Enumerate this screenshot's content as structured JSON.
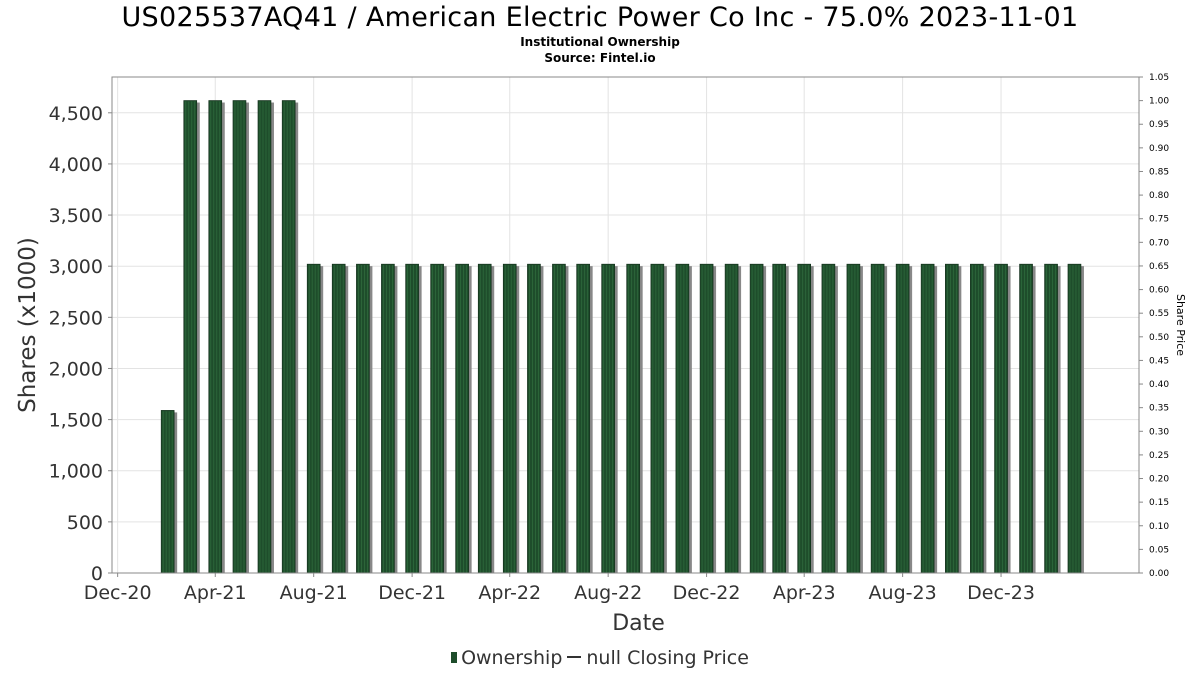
{
  "title": "US025537AQ41 / American Electric Power Co Inc - 75.0% 2023-11-01",
  "subtitle_1": "Institutional Ownership",
  "subtitle_2": "Source: Fintel.io",
  "colors": {
    "bar": "#1e4d2b",
    "bar_shadow": "#888888",
    "grid": "#e3e3e3",
    "axis_text": "#333333"
  },
  "legend": {
    "ownership_label": "Ownership",
    "closing_price_label": "null Closing Price"
  },
  "chart_data": {
    "type": "bar",
    "xlabel": "Date",
    "ylabel": "Shares (x1000)",
    "y2label": "Share Price",
    "ylim": [
      0,
      4850
    ],
    "y_ticks": [
      0,
      500,
      1000,
      1500,
      2000,
      2500,
      3000,
      3500,
      4000,
      4500
    ],
    "y_tick_labels": [
      "0",
      "500",
      "1,000",
      "1,500",
      "2,000",
      "2,500",
      "3,000",
      "3,500",
      "4,000",
      "4,500"
    ],
    "y2lim": [
      0,
      1.05
    ],
    "y2_ticks": [
      0,
      0.05,
      0.1,
      0.15,
      0.2,
      0.25,
      0.3,
      0.35,
      0.4,
      0.45,
      0.5,
      0.55,
      0.6,
      0.65,
      0.7,
      0.75,
      0.8,
      0.85,
      0.9,
      0.95,
      1.0,
      1.05
    ],
    "y2_tick_labels": [
      "0.00",
      "0.05",
      "0.10",
      "0.15",
      "0.20",
      "0.25",
      "0.30",
      "0.35",
      "0.40",
      "0.45",
      "0.50",
      "0.55",
      "0.60",
      "0.65",
      "0.70",
      "0.75",
      "0.80",
      "0.85",
      "0.90",
      "0.95",
      "1.00",
      "1.05"
    ],
    "xlim": [
      "2020-11-24",
      "2024-05-20"
    ],
    "x_ticks": [
      "2020-12-01",
      "2021-04-01",
      "2021-08-01",
      "2021-12-01",
      "2022-04-01",
      "2022-08-01",
      "2022-12-01",
      "2023-04-01",
      "2023-08-01",
      "2023-12-01"
    ],
    "x_tick_labels": [
      "Dec-20",
      "Apr-21",
      "Aug-21",
      "Dec-21",
      "Apr-22",
      "Aug-22",
      "Dec-22",
      "Apr-23",
      "Aug-23",
      "Dec-23"
    ],
    "dates": [
      "2021-02-01",
      "2021-03-01",
      "2021-04-01",
      "2021-05-01",
      "2021-06-01",
      "2021-07-01",
      "2021-08-01",
      "2021-09-01",
      "2021-10-01",
      "2021-11-01",
      "2021-12-01",
      "2022-01-01",
      "2022-02-01",
      "2022-03-01",
      "2022-04-01",
      "2022-05-01",
      "2022-06-01",
      "2022-07-01",
      "2022-08-01",
      "2022-09-01",
      "2022-10-01",
      "2022-11-01",
      "2022-12-01",
      "2023-01-01",
      "2023-02-01",
      "2023-03-01",
      "2023-04-01",
      "2023-05-01",
      "2023-06-01",
      "2023-07-01",
      "2023-08-01",
      "2023-09-01",
      "2023-10-01",
      "2023-11-01",
      "2023-12-01",
      "2024-01-01",
      "2024-02-01",
      "2024-03-01"
    ],
    "values": [
      1590,
      4620,
      4620,
      4620,
      4620,
      4620,
      3020,
      3020,
      3020,
      3020,
      3020,
      3020,
      3020,
      3020,
      3020,
      3020,
      3020,
      3020,
      3020,
      3020,
      3020,
      3020,
      3020,
      3020,
      3020,
      3020,
      3020,
      3020,
      3020,
      3020,
      3020,
      3020,
      3020,
      3020,
      3020,
      3020,
      3020,
      3020
    ],
    "grid": true,
    "legend_position": "bottom"
  }
}
